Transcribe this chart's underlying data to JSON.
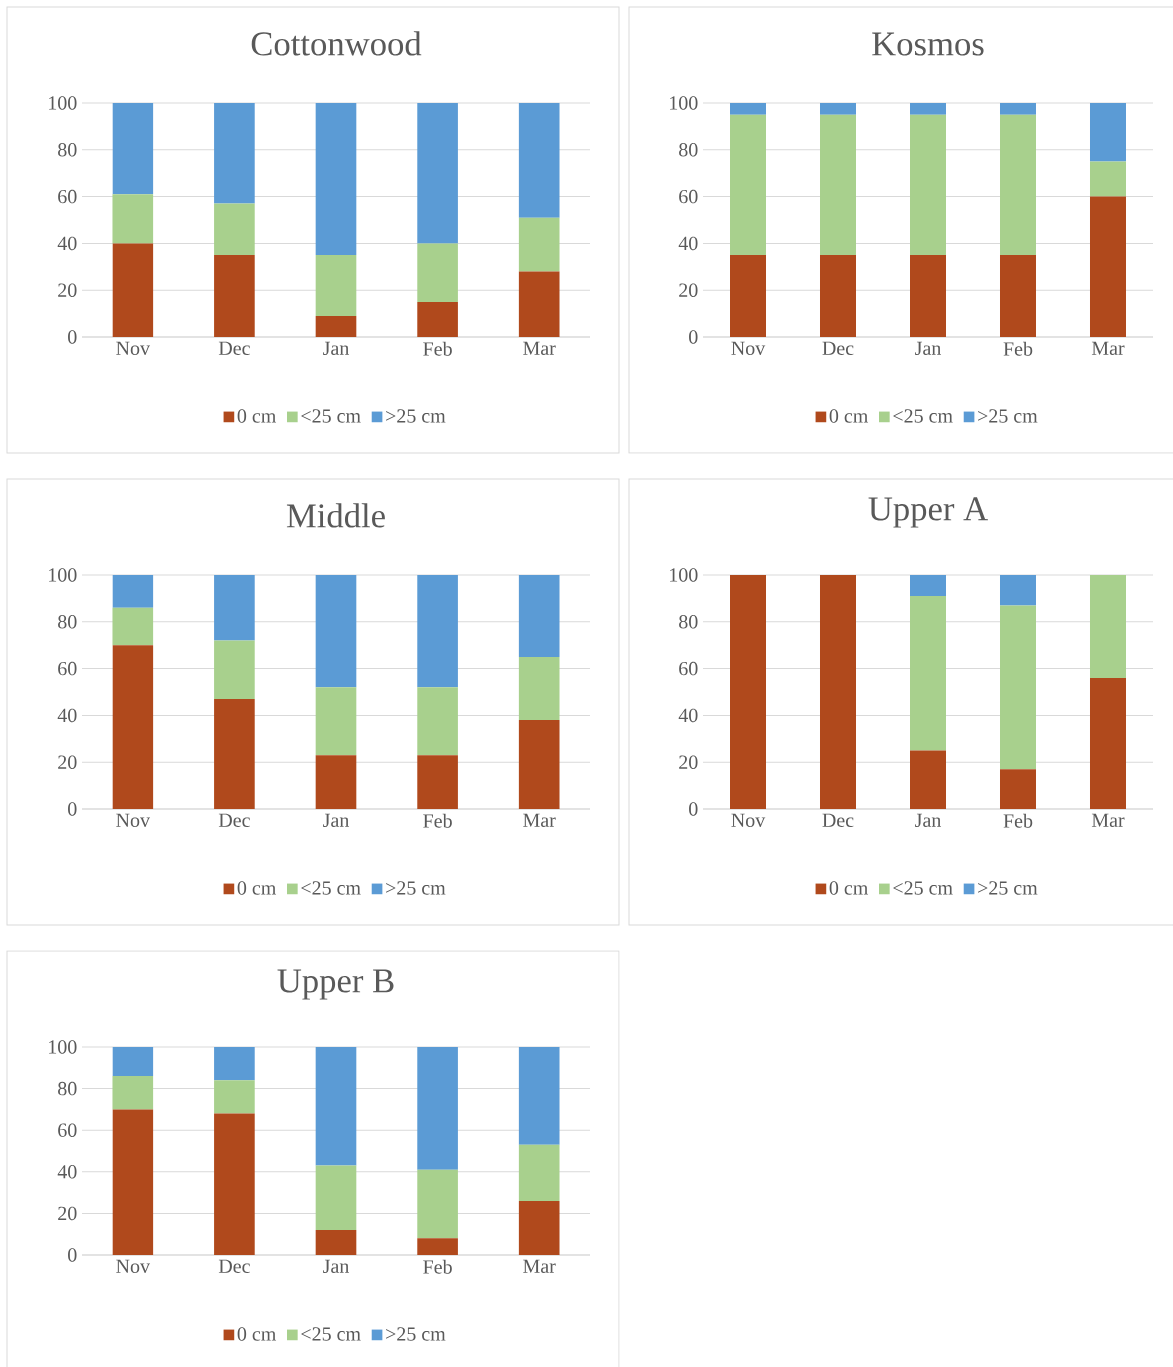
{
  "chart_data": [
    {
      "type": "bar",
      "title": "Cottonwood",
      "categories": [
        "Nov",
        "Dec",
        "Jan",
        "Feb",
        "Mar"
      ],
      "stacked": true,
      "ylim": [
        0,
        100
      ],
      "yticks": [
        0,
        20,
        40,
        60,
        80,
        100
      ],
      "grid": "y",
      "legend": "bottom",
      "series": [
        {
          "name": "0 cm",
          "color": "#b0491c",
          "values": [
            40,
            35,
            9,
            15,
            28
          ]
        },
        {
          "name": "<25 cm",
          "color": "#a8d08d",
          "values": [
            21,
            22,
            26,
            25,
            23
          ]
        },
        {
          "name": ">25 cm",
          "color": "#5b9bd5",
          "values": [
            39,
            43,
            65,
            60,
            49
          ]
        }
      ]
    },
    {
      "type": "bar",
      "title": "Kosmos",
      "categories": [
        "Nov",
        "Dec",
        "Jan",
        "Feb",
        "Mar"
      ],
      "stacked": true,
      "ylim": [
        0,
        100
      ],
      "yticks": [
        0,
        20,
        40,
        60,
        80,
        100
      ],
      "grid": "y",
      "legend": "bottom",
      "series": [
        {
          "name": "0 cm",
          "color": "#b0491c",
          "values": [
            35,
            35,
            35,
            35,
            60
          ]
        },
        {
          "name": "<25 cm",
          "color": "#a8d08d",
          "values": [
            60,
            60,
            60,
            60,
            15
          ]
        },
        {
          "name": ">25 cm",
          "color": "#5b9bd5",
          "values": [
            5,
            5,
            5,
            5,
            25
          ]
        }
      ]
    },
    {
      "type": "bar",
      "title": "Middle",
      "categories": [
        "Nov",
        "Dec",
        "Jan",
        "Feb",
        "Mar"
      ],
      "stacked": true,
      "ylim": [
        0,
        100
      ],
      "yticks": [
        0,
        20,
        40,
        60,
        80,
        100
      ],
      "grid": "y",
      "legend": "bottom",
      "series": [
        {
          "name": "0 cm",
          "color": "#b0491c",
          "values": [
            70,
            47,
            23,
            23,
            38
          ]
        },
        {
          "name": "<25 cm",
          "color": "#a8d08d",
          "values": [
            16,
            25,
            29,
            29,
            27
          ]
        },
        {
          "name": ">25 cm",
          "color": "#5b9bd5",
          "values": [
            14,
            28,
            48,
            48,
            35
          ]
        }
      ]
    },
    {
      "type": "bar",
      "title": "Upper A",
      "categories": [
        "Nov",
        "Dec",
        "Jan",
        "Feb",
        "Mar"
      ],
      "stacked": true,
      "ylim": [
        0,
        100
      ],
      "yticks": [
        0,
        20,
        40,
        60,
        80,
        100
      ],
      "grid": "y",
      "legend": "bottom",
      "series": [
        {
          "name": "0 cm",
          "color": "#b0491c",
          "values": [
            100,
            100,
            25,
            17,
            56
          ]
        },
        {
          "name": "<25 cm",
          "color": "#a8d08d",
          "values": [
            0,
            0,
            66,
            70,
            44
          ]
        },
        {
          "name": ">25 cm",
          "color": "#5b9bd5",
          "values": [
            0,
            0,
            9,
            13,
            0
          ]
        }
      ]
    },
    {
      "type": "bar",
      "title": "Upper B",
      "categories": [
        "Nov",
        "Dec",
        "Jan",
        "Feb",
        "Mar"
      ],
      "stacked": true,
      "ylim": [
        0,
        100
      ],
      "yticks": [
        0,
        20,
        40,
        60,
        80,
        100
      ],
      "grid": "y",
      "legend": "bottom",
      "series": [
        {
          "name": "0 cm",
          "color": "#b0491c",
          "values": [
            70,
            68,
            12,
            8,
            26
          ]
        },
        {
          "name": "<25 cm",
          "color": "#a8d08d",
          "values": [
            16,
            16,
            31,
            33,
            27
          ]
        },
        {
          "name": ">25 cm",
          "color": "#5b9bd5",
          "values": [
            14,
            16,
            57,
            59,
            47
          ]
        }
      ]
    }
  ]
}
